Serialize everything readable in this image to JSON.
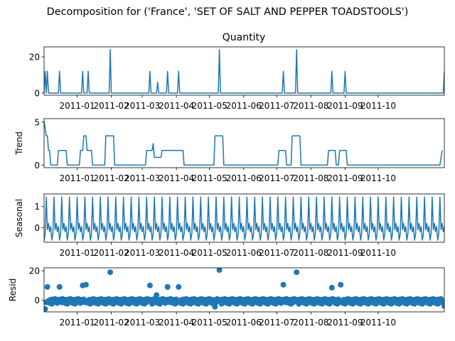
{
  "figure": {
    "suptitle": "Decomposition for ('France', 'SET OF SALT AND PEPPER TOADSTOOLS')"
  },
  "colors": {
    "series": "#1f77b4",
    "axis": "#000000",
    "background": "#ffffff"
  },
  "chart_data": [
    {
      "type": "line",
      "title": "Quantity",
      "xlabel": "",
      "ylabel": "",
      "xlim": [
        "2010-12-02",
        "2011-11-30"
      ],
      "ylim": [
        -1.2,
        25.5
      ],
      "yticks": [
        0,
        20
      ],
      "xtick_labels": [
        "2011-01",
        "2011-02",
        "2011-03",
        "2011-04",
        "2011-05",
        "2011-06",
        "2011-07",
        "2011-08",
        "2011-09",
        "2011-10"
      ],
      "grid": false,
      "baseline": 0,
      "spikes": [
        {
          "date": "2010-12-03",
          "value": 12
        },
        {
          "date": "2010-12-05",
          "value": 12
        },
        {
          "date": "2010-12-16",
          "value": 12
        },
        {
          "date": "2011-01-06",
          "value": 12
        },
        {
          "date": "2011-01-11",
          "value": 12
        },
        {
          "date": "2011-01-31",
          "value": 24
        },
        {
          "date": "2011-03-08",
          "value": 12
        },
        {
          "date": "2011-03-15",
          "value": 6
        },
        {
          "date": "2011-03-24",
          "value": 12
        },
        {
          "date": "2011-04-03",
          "value": 12
        },
        {
          "date": "2011-05-10",
          "value": 24
        },
        {
          "date": "2011-07-07",
          "value": 12
        },
        {
          "date": "2011-07-19",
          "value": 24
        },
        {
          "date": "2011-08-20",
          "value": 12
        },
        {
          "date": "2011-09-01",
          "value": 12
        },
        {
          "date": "2011-11-30",
          "value": 12
        }
      ]
    },
    {
      "type": "line",
      "title": "",
      "xlabel": "",
      "ylabel": "Trend",
      "xlim": [
        "2010-12-02",
        "2011-11-30"
      ],
      "ylim": [
        -0.3,
        5.4
      ],
      "yticks": [
        0,
        5
      ],
      "xtick_labels": [
        "2011-01",
        "2011-02",
        "2011-03",
        "2011-04",
        "2011-05",
        "2011-06",
        "2011-07",
        "2011-08",
        "2011-09",
        "2011-10"
      ],
      "grid": false,
      "points": [
        {
          "date": "2010-12-02",
          "value": 5.1
        },
        {
          "date": "2010-12-04",
          "value": 3.4
        },
        {
          "date": "2010-12-05",
          "value": 3.4
        },
        {
          "date": "2010-12-06",
          "value": 1.7
        },
        {
          "date": "2010-12-07",
          "value": 1.7
        },
        {
          "date": "2010-12-08",
          "value": 0
        },
        {
          "date": "2010-12-14",
          "value": 0
        },
        {
          "date": "2010-12-15",
          "value": 1.7
        },
        {
          "date": "2010-12-22",
          "value": 1.7
        },
        {
          "date": "2010-12-23",
          "value": 0
        },
        {
          "date": "2011-01-03",
          "value": 0
        },
        {
          "date": "2011-01-04",
          "value": 1.7
        },
        {
          "date": "2011-01-06",
          "value": 1.7
        },
        {
          "date": "2011-01-07",
          "value": 3.4
        },
        {
          "date": "2011-01-09",
          "value": 3.4
        },
        {
          "date": "2011-01-10",
          "value": 1.7
        },
        {
          "date": "2011-01-14",
          "value": 1.7
        },
        {
          "date": "2011-01-15",
          "value": 0
        },
        {
          "date": "2011-01-26",
          "value": 0
        },
        {
          "date": "2011-01-27",
          "value": 3.4
        },
        {
          "date": "2011-02-03",
          "value": 3.4
        },
        {
          "date": "2011-02-04",
          "value": 0
        },
        {
          "date": "2011-03-04",
          "value": 0
        },
        {
          "date": "2011-03-05",
          "value": 1.7
        },
        {
          "date": "2011-03-10",
          "value": 1.7
        },
        {
          "date": "2011-03-11",
          "value": 2.5
        },
        {
          "date": "2011-03-12",
          "value": 0.9
        },
        {
          "date": "2011-03-18",
          "value": 0.9
        },
        {
          "date": "2011-03-19",
          "value": 1.7
        },
        {
          "date": "2011-04-07",
          "value": 1.7
        },
        {
          "date": "2011-04-08",
          "value": 0
        },
        {
          "date": "2011-05-05",
          "value": 0
        },
        {
          "date": "2011-05-06",
          "value": 3.4
        },
        {
          "date": "2011-05-13",
          "value": 3.4
        },
        {
          "date": "2011-05-14",
          "value": 0
        },
        {
          "date": "2011-07-02",
          "value": 0
        },
        {
          "date": "2011-07-03",
          "value": 1.7
        },
        {
          "date": "2011-07-09",
          "value": 1.7
        },
        {
          "date": "2011-07-10",
          "value": 0
        },
        {
          "date": "2011-07-14",
          "value": 0
        },
        {
          "date": "2011-07-15",
          "value": 3.4
        },
        {
          "date": "2011-07-22",
          "value": 3.4
        },
        {
          "date": "2011-07-23",
          "value": 0
        },
        {
          "date": "2011-08-16",
          "value": 0
        },
        {
          "date": "2011-08-17",
          "value": 1.7
        },
        {
          "date": "2011-08-23",
          "value": 1.7
        },
        {
          "date": "2011-08-24",
          "value": 0
        },
        {
          "date": "2011-08-26",
          "value": 0
        },
        {
          "date": "2011-08-27",
          "value": 1.7
        },
        {
          "date": "2011-09-02",
          "value": 1.7
        },
        {
          "date": "2011-09-03",
          "value": 0
        },
        {
          "date": "2011-11-26",
          "value": 0
        },
        {
          "date": "2011-11-28",
          "value": 1.7
        }
      ]
    },
    {
      "type": "line",
      "title": "",
      "xlabel": "",
      "ylabel": "Seasonal",
      "xlim": [
        "2010-12-02",
        "2011-11-30"
      ],
      "ylim": [
        -0.7,
        1.6
      ],
      "yticks": [
        0,
        1
      ],
      "xtick_labels": [
        "2011-01",
        "2011-02",
        "2011-03",
        "2011-04",
        "2011-05",
        "2011-06",
        "2011-07",
        "2011-08",
        "2011-09",
        "2011-10"
      ],
      "grid": false,
      "period_days": 7,
      "pattern": [
        -0.6,
        -0.3,
        1.45,
        -0.1,
        0.2,
        -0.2,
        0.05
      ]
    },
    {
      "type": "scatter",
      "title": "",
      "xlabel": "",
      "ylabel": "Resid",
      "xlim": [
        "2010-12-02",
        "2011-11-30"
      ],
      "ylim": [
        -8,
        22
      ],
      "yticks": [
        0,
        20
      ],
      "xtick_labels": [
        "2011-01",
        "2011-02",
        "2011-03",
        "2011-04",
        "2011-05",
        "2011-06",
        "2011-07",
        "2011-08",
        "2011-09",
        "2011-10"
      ],
      "grid": false,
      "outliers": [
        {
          "date": "2010-12-02",
          "value": -6
        },
        {
          "date": "2010-12-03",
          "value": -6
        },
        {
          "date": "2010-12-05",
          "value": 9
        },
        {
          "date": "2010-12-16",
          "value": 9
        },
        {
          "date": "2011-01-06",
          "value": 10
        },
        {
          "date": "2011-01-09",
          "value": 10.5
        },
        {
          "date": "2011-01-31",
          "value": 19
        },
        {
          "date": "2011-03-08",
          "value": 10
        },
        {
          "date": "2011-03-14",
          "value": 3.5
        },
        {
          "date": "2011-03-24",
          "value": 9
        },
        {
          "date": "2011-04-03",
          "value": 9
        },
        {
          "date": "2011-05-06",
          "value": -4.5
        },
        {
          "date": "2011-05-10",
          "value": 20.5
        },
        {
          "date": "2011-07-07",
          "value": 10.5
        },
        {
          "date": "2011-07-19",
          "value": 19
        },
        {
          "date": "2011-08-20",
          "value": 8.5
        },
        {
          "date": "2011-08-28",
          "value": 10.5
        },
        {
          "date": "2011-11-30",
          "value": -4
        }
      ],
      "baseline_pattern": [
        -2.5,
        0.5,
        -1.5,
        0.8,
        -0.5,
        -2,
        0.3
      ]
    }
  ]
}
